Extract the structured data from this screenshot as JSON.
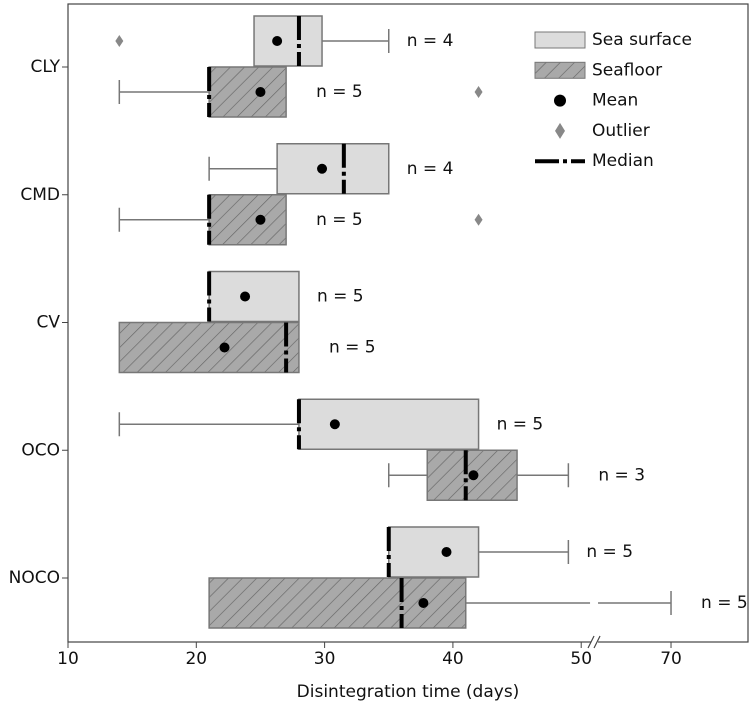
{
  "chart_data": {
    "type": "boxplot",
    "categories": [
      "CLY",
      "CMD",
      "CV",
      "OCO",
      "NOCO"
    ],
    "series": [
      {
        "name": "Sea surface",
        "color": "#dcdcdc",
        "hatch": false,
        "whislo": [
          24.5,
          21,
          21,
          14,
          35
        ],
        "q1": [
          24.5,
          26.3,
          21,
          28,
          35
        ],
        "med": [
          28,
          31.5,
          21,
          28,
          35
        ],
        "q3": [
          29.8,
          35,
          28,
          42,
          42
        ],
        "whishi": [
          35,
          35,
          28,
          42,
          49
        ],
        "mean": [
          26.3,
          29.8,
          23.8,
          30.8,
          39.5
        ],
        "outliers": [
          [
            14
          ],
          [],
          [],
          [],
          []
        ],
        "n_labels": [
          "n = 4",
          "n = 4",
          "n = 5",
          "n = 5",
          "n = 5"
        ]
      },
      {
        "name": "Seafloor",
        "color": "#a9a9a9",
        "hatch": true,
        "whislo": [
          14,
          14,
          14,
          35,
          21
        ],
        "q1": [
          21,
          21,
          14,
          38,
          21
        ],
        "med": [
          21,
          21,
          27,
          41,
          36
        ],
        "q3": [
          27,
          27,
          28,
          45,
          41
        ],
        "whishi": [
          27,
          27,
          28,
          49,
          70
        ],
        "mean": [
          25,
          25,
          22.2,
          41.6,
          37.7
        ],
        "outliers": [
          [
            42
          ],
          [
            42
          ],
          [],
          [],
          []
        ],
        "n_labels": [
          "n = 5",
          "n = 5",
          "n = 5",
          "n = 3",
          "n = 5"
        ]
      }
    ],
    "legend_extra": [
      "Mean",
      "Outlier",
      "Median"
    ],
    "xlabel": "Disintegration time (days)",
    "xlim": [
      10,
      76
    ],
    "xbreak": [
      51,
      64
    ],
    "xticks": [
      10,
      20,
      30,
      40,
      50,
      70
    ],
    "legend": "upper right"
  }
}
